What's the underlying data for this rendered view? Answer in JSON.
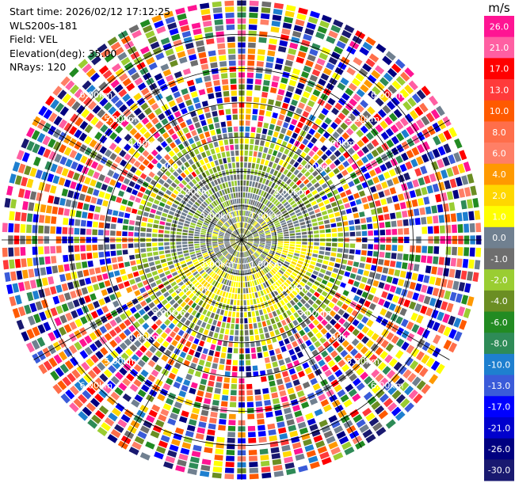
{
  "info": {
    "start_time": "Start time: 2026/02/12 17:12:25",
    "station": "WLS200s-181",
    "field": "Field: VEL",
    "elevation": "Elevation(deg): 35.00",
    "nrays": "NRays: 120"
  },
  "chart_data": {
    "type": "ppi-radar",
    "field": "VEL",
    "unit": "m/s",
    "elevation_deg": 35.0,
    "n_rays": 120,
    "max_range_km": 7.0,
    "range_rings_km": [
      1.0,
      2.0,
      3.0,
      4.0,
      5.0,
      6.0
    ],
    "ring_labels": [
      "1.00km",
      "2.00km",
      "3.00km",
      "4.00km",
      "5.00km",
      "6.00km"
    ],
    "azimuth_lines_deg": [
      0,
      30,
      60,
      90,
      120,
      150,
      180,
      210,
      240,
      270,
      300,
      330
    ],
    "colorbar": {
      "label": "m/s",
      "ticks": [
        "26.0",
        "21.0",
        "17.0",
        "13.0",
        "10.0",
        "8.0",
        "6.0",
        "4.0",
        "2.0",
        "1.0",
        "0.0",
        "-1.0",
        "-2.0",
        "-4.0",
        "-6.0",
        "-8.0",
        "-10.0",
        "-13.0",
        "-17.0",
        "-21.0",
        "-26.0",
        "-30.0"
      ],
      "colors": [
        "#ff1493",
        "#ff5fa2",
        "#ff0000",
        "#ff3a3a",
        "#ff5a00",
        "#ff6e4a",
        "#ff7f66",
        "#ff9900",
        "#ffd700",
        "#ffff00",
        "#708090",
        "#6e6e6e",
        "#9acd32",
        "#6b8e23",
        "#228b22",
        "#2e8b57",
        "#1e7fcf",
        "#3a5bd9",
        "#0000ff",
        "#0000cd",
        "#000080",
        "#191970"
      ]
    },
    "patterns": {
      "inner_field": "weak winds near zero: gray and yellow-green",
      "yellow_band": "ring of +2 to +4 m/s yellow around 1-2.5 km",
      "outer_field": "noisy mixed velocities beyond ~3 km"
    }
  }
}
